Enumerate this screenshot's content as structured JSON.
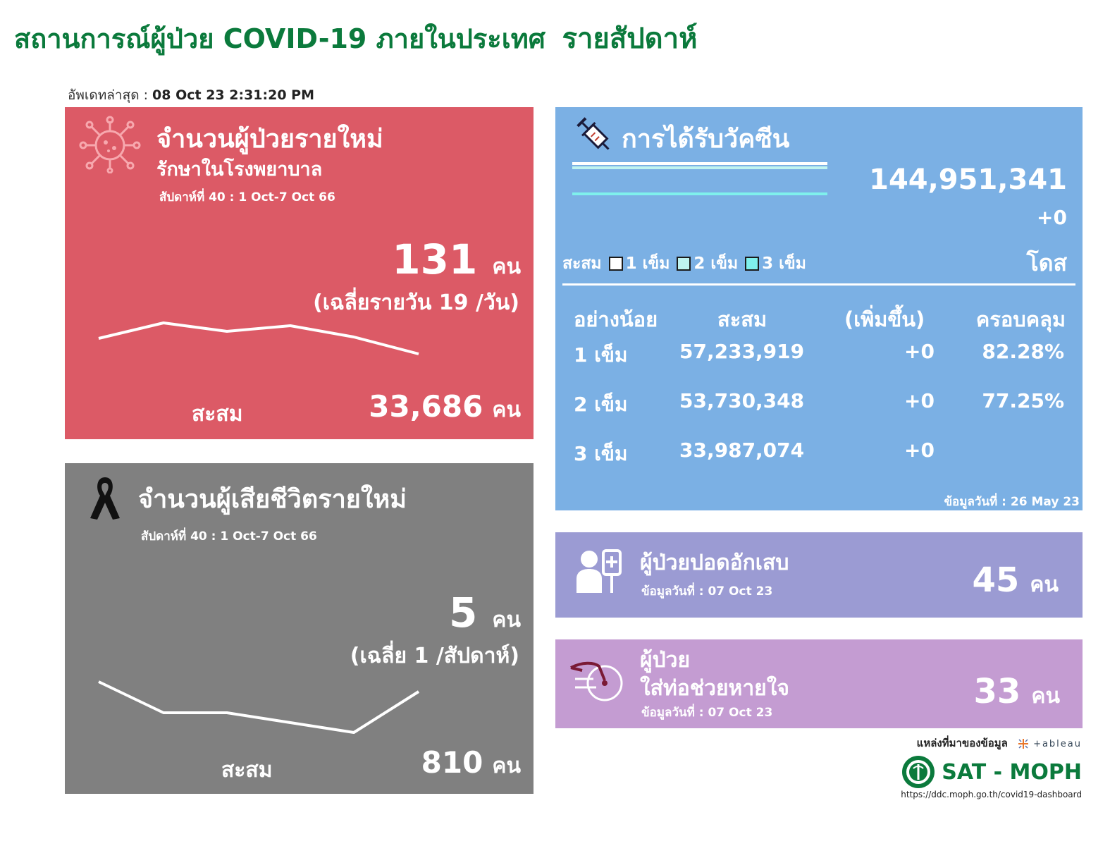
{
  "header": {
    "title": "สถานการณ์ผู้ป่วย COVID-19 ภายในประเทศ",
    "title_suffix": "รายสัปดาห์",
    "updated_label": "อัพเดทล่าสุด :",
    "updated_value": "08 Oct 23 2:31:20 PM"
  },
  "cases": {
    "title": "จำนวนผู้ป่วยรายใหม่",
    "subtitle": "รักษาในโรงพยาบาล",
    "week": "สัปดาห์ที่ 40 : 1 Oct-7 Oct 66",
    "value": "131",
    "unit": "คน",
    "avg": "(เฉลี่ยรายวัน 19 /วัน)",
    "cumulative_label": "สะสม",
    "cumulative_value": "33,686",
    "cumulative_unit": "คน",
    "icon": "virus-icon",
    "color": "#dc5a66"
  },
  "deaths": {
    "title": "จำนวนผู้เสียชีวิตรายใหม่",
    "week": "สัปดาห์ที่  40 : 1 Oct-7 Oct 66",
    "value": "5",
    "unit": "คน",
    "avg": "(เฉลี่ย 1 /สัปดาห์)",
    "cumulative_label": "สะสม",
    "cumulative_value": "810",
    "cumulative_unit": "คน",
    "icon": "black-ribbon-icon",
    "color": "#808080"
  },
  "vaccine": {
    "title": "การได้รับวัคซีน",
    "total": "144,951,341",
    "increase": "+0",
    "dose_unit": "โดส",
    "legend_label": "สะสม",
    "legend_items": [
      "1 เข็ม",
      "2 เข็ม",
      "3 เข็ม"
    ],
    "legend_colors": [
      "#ffffff",
      "#bff3f0",
      "#7ff0ec"
    ],
    "columns": [
      "อย่างน้อย",
      "สะสม",
      "(เพิ่มขึ้น)",
      "ครอบคลุม"
    ],
    "rows": [
      {
        "dose": "1 เข็ม",
        "total": "57,233,919",
        "increase": "+0",
        "coverage": "82.28%"
      },
      {
        "dose": "2 เข็ม",
        "total": "53,730,348",
        "increase": "+0",
        "coverage": "77.25%"
      },
      {
        "dose": "3 เข็ม",
        "total": "33,987,074",
        "increase": "+0",
        "coverage": ""
      }
    ],
    "data_date": "ข้อมูลวันที่ : 26 May 23",
    "icon": "syringe-icon",
    "color": "#7bb0e4"
  },
  "pneumonia": {
    "title": "ผู้ป่วยปอดอักเสบ",
    "data_date": "ข้อมูลวันที่ : 07 Oct 23",
    "value": "45",
    "unit": "คน",
    "icon": "patient-iv-icon",
    "color": "#9b9bd3"
  },
  "ventilator": {
    "title_line1": "ผู้ป่วย",
    "title_line2": "ใส่ท่อช่วยหายใจ",
    "data_date": "ข้อมูลวันที่ : 07 Oct 23",
    "value": "33",
    "unit": "คน",
    "icon": "ventilator-icon",
    "color": "#c49cd2"
  },
  "source": {
    "label": "แหล่งที่มาของข้อมูล",
    "tableau": "+ableau",
    "org": "SAT - MOPH",
    "url": "https://ddc.moph.go.th/covid19-dashboard",
    "tableau_icon": "tableau-logo-icon",
    "moph_icon": "moph-seal-icon"
  }
}
